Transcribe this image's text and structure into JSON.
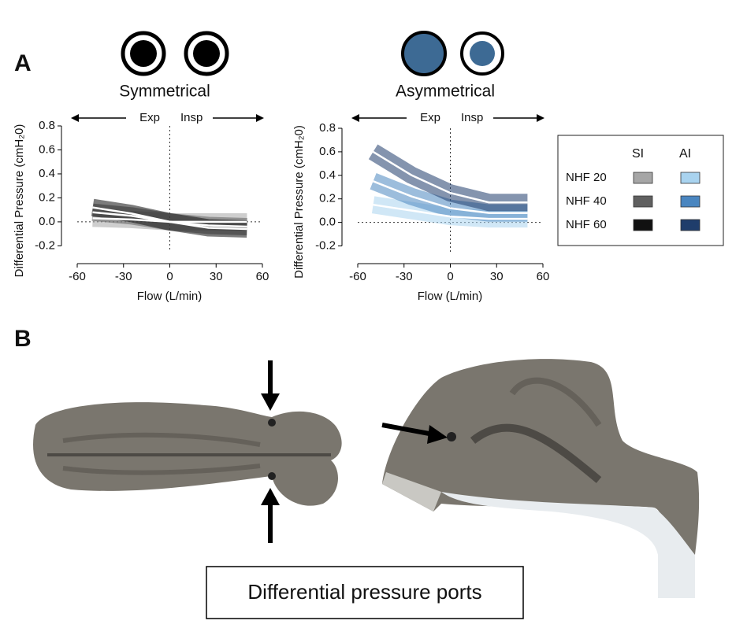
{
  "panels": [
    "A",
    "B"
  ],
  "chart_data": [
    {
      "type": "line",
      "title": "Symmetrical",
      "annotations": [
        "Exp",
        "Insp"
      ],
      "xlabel": "Flow (L/min)",
      "ylabel": "Differential Pressure (cmH₂0)",
      "x": [
        -50,
        -25,
        0,
        25,
        50
      ],
      "series": [
        {
          "color": "#a6a6a6",
          "values": [
            0.03,
            0.02,
            0.0,
            0.0,
            0.0
          ]
        },
        {
          "color": "#606060",
          "values": [
            0.08,
            0.05,
            0.0,
            -0.03,
            -0.04
          ]
        },
        {
          "color": "#111111",
          "values": [
            0.12,
            0.07,
            0.0,
            -0.05,
            -0.06
          ]
        }
      ],
      "xlim": [
        -60,
        60
      ],
      "xticks": [
        -60,
        -30,
        0,
        30,
        60
      ],
      "ylim": [
        -0.25,
        0.8
      ],
      "yticks": [
        -0.2,
        {
          "value": 0,
          "label": "0.0"
        },
        0.2,
        0.4,
        0.6,
        0.8
      ]
    },
    {
      "type": "line",
      "title": "Asymmetrical",
      "annotations": [
        "Exp",
        "Insp"
      ],
      "xlabel": "Flow (L/min)",
      "ylabel": "Differential Pressure (cmH₂0)",
      "x": [
        -50,
        -25,
        0,
        25,
        50
      ],
      "series": [
        {
          "color": "#a9d3ef",
          "values": [
            0.15,
            0.1,
            0.05,
            0.03,
            0.03
          ]
        },
        {
          "color": "#4a86c0",
          "values": [
            0.35,
            0.22,
            0.12,
            0.08,
            0.08
          ]
        },
        {
          "color": "#1f3d6b",
          "values": [
            0.6,
            0.4,
            0.25,
            0.17,
            0.17
          ]
        }
      ],
      "xlim": [
        -60,
        60
      ],
      "xticks": [
        -60,
        -30,
        0,
        30,
        60
      ],
      "ylim": [
        -0.25,
        0.8
      ],
      "yticks": [
        -0.2,
        {
          "value": 0,
          "label": "0.0"
        },
        0.2,
        0.4,
        0.6,
        0.8
      ]
    }
  ],
  "legend": {
    "columns": [
      "SI",
      "AI"
    ],
    "rows": [
      "NHF 20",
      "NHF 40",
      "NHF 60"
    ]
  },
  "caption": "Differential pressure ports"
}
